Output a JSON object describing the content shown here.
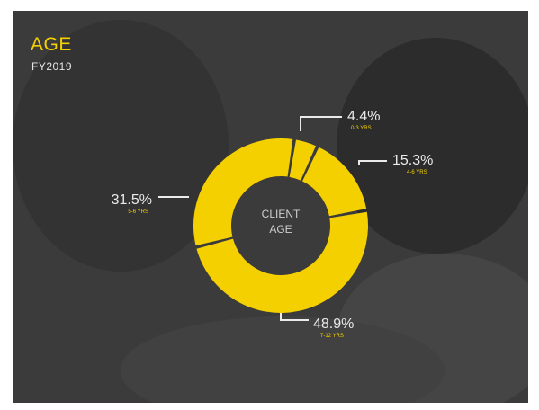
{
  "header": {
    "title": "AGE",
    "subtitle": "FY2019"
  },
  "colors": {
    "accent": "#f5d000",
    "background": "#3a3a3a",
    "label": "#eaeaea"
  },
  "chart_data": {
    "type": "pie",
    "subtype": "donut",
    "center_label": [
      "CLIENT",
      "AGE"
    ],
    "slices": [
      {
        "value": 4.4,
        "label": "4.4%",
        "category": "0-3 YRS"
      },
      {
        "value": 15.3,
        "label": "15.3%",
        "category": "4-6 YRS"
      },
      {
        "value": 48.9,
        "label": "48.9%",
        "category": "7-12 YRS"
      },
      {
        "value": 31.5,
        "label": "31.5%",
        "category": "5-6 YRS"
      }
    ]
  }
}
